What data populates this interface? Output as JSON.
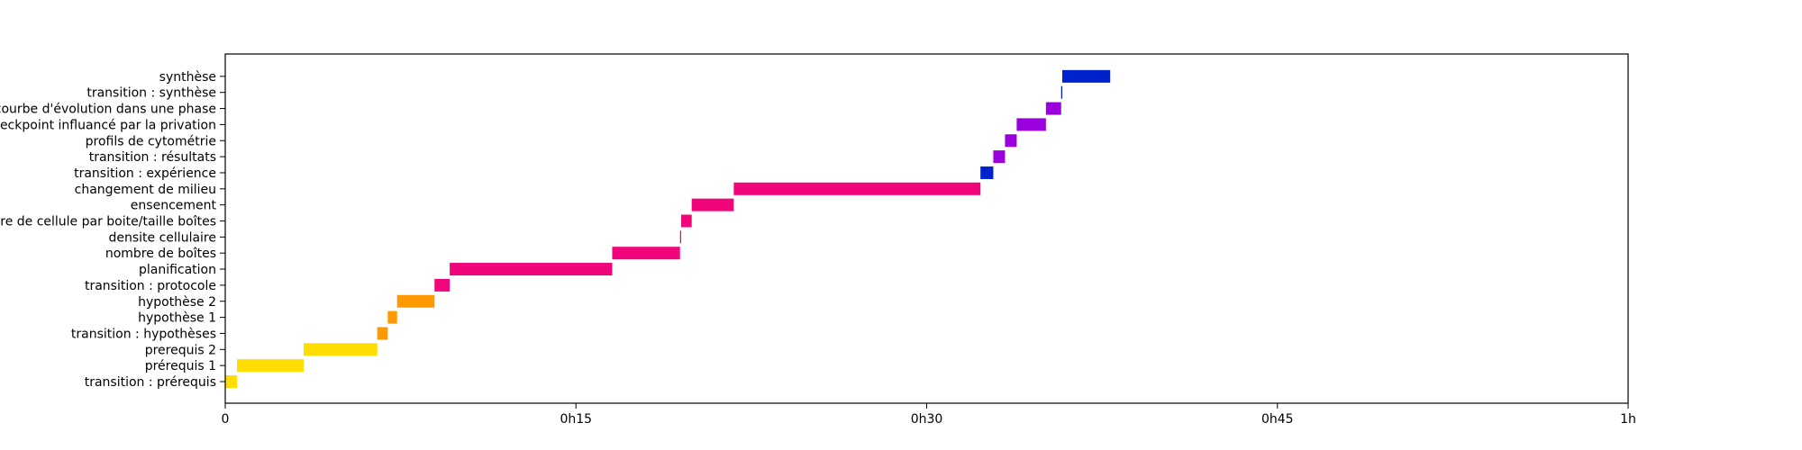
{
  "chart_data": {
    "type": "gantt",
    "title": "",
    "xlabel": "",
    "ylabel": "",
    "x_unit": "minutes",
    "xlim": [
      0,
      60
    ],
    "x_ticks": [
      {
        "value": 0,
        "label": "0"
      },
      {
        "value": 15,
        "label": "0h15"
      },
      {
        "value": 30,
        "label": "0h30"
      },
      {
        "value": 45,
        "label": "0h45"
      },
      {
        "value": 60,
        "label": "1h"
      }
    ],
    "grid": false,
    "legend": "none",
    "colors": {
      "prerequis": "#ffdd00",
      "hypotheses": "#ff9900",
      "protocole": "#f0057a",
      "experience": "#0022cc",
      "resultats": "#9900dd",
      "synthese": "#0022cc"
    },
    "tasks": [
      {
        "label": "transition : prérequis",
        "start": 0.0,
        "end": 0.5,
        "color": "#ffdd00"
      },
      {
        "label": "prérequis 1",
        "start": 0.5,
        "end": 3.35,
        "color": "#ffdd00"
      },
      {
        "label": "prerequis 2",
        "start": 3.35,
        "end": 6.5,
        "color": "#ffdd00"
      },
      {
        "label": "transition : hypothèses",
        "start": 6.5,
        "end": 6.95,
        "color": "#ff9900"
      },
      {
        "label": "hypothèse 1",
        "start": 6.95,
        "end": 7.35,
        "color": "#ff9900"
      },
      {
        "label": "hypothèse 2",
        "start": 7.35,
        "end": 8.95,
        "color": "#ff9900"
      },
      {
        "label": "transition : protocole",
        "start": 8.95,
        "end": 9.6,
        "color": "#f0057a"
      },
      {
        "label": "planification",
        "start": 9.6,
        "end": 16.55,
        "color": "#f0057a"
      },
      {
        "label": "nombre de boîtes",
        "start": 16.55,
        "end": 19.45,
        "color": "#f0057a"
      },
      {
        "label": "densite cellulaire",
        "start": 19.45,
        "end": 19.5,
        "color": "#f0057a"
      },
      {
        "label": "nombre de cellule par boite/taille boîtes",
        "start": 19.5,
        "end": 19.95,
        "color": "#f0057a"
      },
      {
        "label": "ensencement",
        "start": 19.95,
        "end": 21.75,
        "color": "#f0057a"
      },
      {
        "label": "changement de milieu",
        "start": 21.75,
        "end": 32.3,
        "color": "#f0057a"
      },
      {
        "label": "transition : expérience",
        "start": 32.3,
        "end": 32.85,
        "color": "#0022cc"
      },
      {
        "label": "transition : résultats",
        "start": 32.85,
        "end": 33.35,
        "color": "#9900dd"
      },
      {
        "label": "profils de cytométrie",
        "start": 33.35,
        "end": 33.85,
        "color": "#9900dd"
      },
      {
        "label": "checkpoint influancé par la privation",
        "start": 33.85,
        "end": 35.1,
        "color": "#9900dd"
      },
      {
        "label": "courbe d'évolution dans une phase",
        "start": 35.1,
        "end": 35.75,
        "color": "#9900dd"
      },
      {
        "label": "transition : synthèse",
        "start": 35.75,
        "end": 35.8,
        "color": "#0022cc"
      },
      {
        "label": "synthèse",
        "start": 35.8,
        "end": 37.85,
        "color": "#0022cc"
      }
    ]
  }
}
